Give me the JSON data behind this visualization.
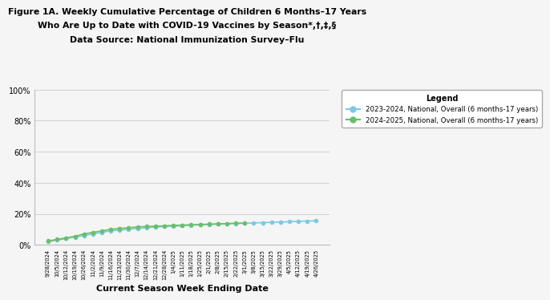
{
  "title_line1": "Figure 1A. Weekly Cumulative Percentage of Children 6 Months–17 Years",
  "title_line2": "Who Are Up to Date with COVID-19 Vaccines by Season*,†,‡,§",
  "title_line3": "Data Source: National Immunization Survey–Flu",
  "xlabel": "Current Season Week Ending Date",
  "ylim": [
    0,
    100
  ],
  "yticks": [
    0,
    20,
    40,
    60,
    80,
    100
  ],
  "ytick_labels": [
    "0%",
    "20%",
    "40%",
    "60%",
    "80%",
    "100%"
  ],
  "legend_title": "Legend",
  "legend_label_2324": "2023-2024, National, Overall (6 months-17 years)",
  "legend_label_2425": "2024-2025, National, Overall (6 months-17 years)",
  "color_2324": "#7ec8e3",
  "color_2425": "#6abf69",
  "bg_color": "#f5f5f5",
  "x_labels": [
    "9/28/2024",
    "10/5/2024",
    "10/12/2024",
    "10/19/2024",
    "10/26/2024",
    "11/2/2024",
    "11/9/2024",
    "11/16/2024",
    "11/23/2024",
    "11/30/2024",
    "12/7/2024",
    "12/14/2024",
    "12/21/2024",
    "12/28/2024",
    "1/4/2025",
    "1/11/2025",
    "1/18/2025",
    "1/25/2025",
    "2/1/2025",
    "2/8/2025",
    "2/15/2025",
    "2/22/2025",
    "3/1/2025",
    "3/8/2025",
    "3/15/2025",
    "3/22/2025",
    "3/29/2025",
    "4/5/2025",
    "4/12/2025",
    "4/19/2025",
    "4/26/2025"
  ],
  "series_2324": [
    2.0,
    3.0,
    4.0,
    5.0,
    6.0,
    7.0,
    8.0,
    9.0,
    9.5,
    10.0,
    10.5,
    11.0,
    11.5,
    11.8,
    12.0,
    12.3,
    12.6,
    12.9,
    13.1,
    13.3,
    13.5,
    13.7,
    13.9,
    14.1,
    14.3,
    14.5,
    14.7,
    14.9,
    15.1,
    15.3,
    15.5
  ],
  "series_2425": [
    2.5,
    3.5,
    4.5,
    5.5,
    7.0,
    8.0,
    9.0,
    10.0,
    10.5,
    11.0,
    11.5,
    11.8,
    12.0,
    12.2,
    12.5,
    12.7,
    12.9,
    13.1,
    13.3,
    13.5,
    13.7,
    13.9,
    14.0,
    null,
    null,
    null,
    null,
    null,
    null,
    null,
    null
  ]
}
